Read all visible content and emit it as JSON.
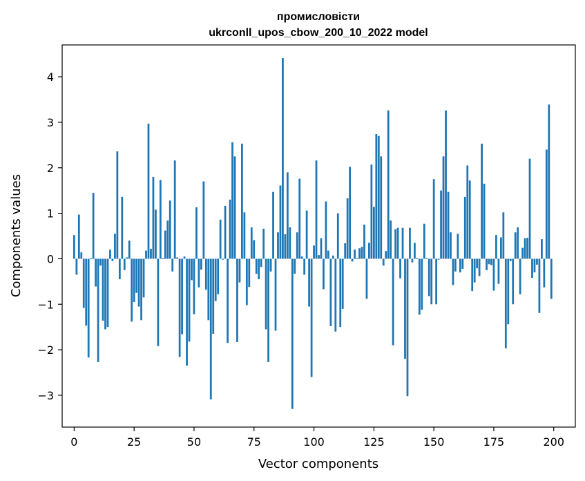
{
  "chart_data": {
    "type": "bar",
    "title": "промисловісти",
    "subtitle": "ukrconll_upos_cbow_200_10_2022 model",
    "xlabel": "Vector components",
    "ylabel": "Components values",
    "xlim": [
      -5,
      209
    ],
    "ylim": [
      -3.7,
      4.7
    ],
    "xticks": [
      0,
      25,
      50,
      75,
      100,
      125,
      150,
      175,
      200
    ],
    "yticks": [
      -3,
      -2,
      -1,
      0,
      1,
      2,
      3,
      4
    ],
    "grid": false,
    "bar_color": "#1f77b4",
    "x": [
      0,
      1,
      2,
      3,
      4,
      5,
      6,
      7,
      8,
      9,
      10,
      11,
      12,
      13,
      14,
      15,
      16,
      17,
      18,
      19,
      20,
      21,
      22,
      23,
      24,
      25,
      26,
      27,
      28,
      29,
      30,
      31,
      32,
      33,
      34,
      35,
      36,
      37,
      38,
      39,
      40,
      41,
      42,
      43,
      44,
      45,
      46,
      47,
      48,
      49,
      50,
      51,
      52,
      53,
      54,
      55,
      56,
      57,
      58,
      59,
      60,
      61,
      62,
      63,
      64,
      65,
      66,
      67,
      68,
      69,
      70,
      71,
      72,
      73,
      74,
      75,
      76,
      77,
      78,
      79,
      80,
      81,
      82,
      83,
      84,
      85,
      86,
      87,
      88,
      89,
      90,
      91,
      92,
      93,
      94,
      95,
      96,
      97,
      98,
      99,
      100,
      101,
      102,
      103,
      104,
      105,
      106,
      107,
      108,
      109,
      110,
      111,
      112,
      113,
      114,
      115,
      116,
      117,
      118,
      119,
      120,
      121,
      122,
      123,
      124,
      125,
      126,
      127,
      128,
      129,
      130,
      131,
      132,
      133,
      134,
      135,
      136,
      137,
      138,
      139,
      140,
      141,
      142,
      143,
      144,
      145,
      146,
      147,
      148,
      149,
      150,
      151,
      152,
      153,
      154,
      155,
      156,
      157,
      158,
      159,
      160,
      161,
      162,
      163,
      164,
      165,
      166,
      167,
      168,
      169,
      170,
      171,
      172,
      173,
      174,
      175,
      176,
      177,
      178,
      179,
      180,
      181,
      182,
      183,
      184,
      185,
      186,
      187,
      188,
      189,
      190,
      191,
      192,
      193,
      194,
      195,
      196,
      197,
      198,
      199
    ],
    "values": [
      0.52,
      -0.35,
      0.97,
      0.14,
      -1.08,
      -1.47,
      -2.17,
      0.02,
      1.45,
      -0.61,
      -2.27,
      -0.15,
      -1.36,
      -1.55,
      -1.5,
      0.2,
      -0.05,
      0.55,
      2.36,
      -0.45,
      1.36,
      -0.25,
      0.03,
      0.4,
      -1.38,
      -0.95,
      -0.75,
      -1.05,
      -1.35,
      -0.85,
      0.18,
      2.97,
      0.22,
      1.8,
      1.08,
      -1.92,
      1.73,
      0.02,
      0.62,
      0.84,
      1.28,
      -0.28,
      2.16,
      0.03,
      -2.16,
      -1.66,
      0.05,
      -2.35,
      -1.82,
      -0.47,
      -1.22,
      1.13,
      -0.63,
      -0.24,
      1.7,
      -0.68,
      -1.35,
      -3.09,
      -1.65,
      -0.93,
      -0.78,
      0.86,
      -0.02,
      1.16,
      -1.85,
      1.3,
      2.56,
      2.25,
      -1.83,
      -0.52,
      2.53,
      1.02,
      -1.02,
      -0.62,
      0.69,
      0.41,
      -0.33,
      -0.45,
      -0.18,
      0.66,
      -1.55,
      -2.27,
      -0.28,
      1.47,
      -1.58,
      0.58,
      1.61,
      4.41,
      0.54,
      1.9,
      0.69,
      -3.3,
      -0.33,
      0.58,
      1.76,
      0.05,
      -0.35,
      1.06,
      -1.05,
      -2.6,
      0.29,
      2.16,
      0.08,
      0.45,
      -0.67,
      1.26,
      0.18,
      -1.48,
      0.07,
      -1.6,
      1.0,
      -1.5,
      -1.1,
      0.34,
      1.33,
      2.02,
      -0.06,
      0.2,
      0.02,
      0.23,
      0.26,
      0.75,
      -0.88,
      0.35,
      2.07,
      1.14,
      2.74,
      2.7,
      2.25,
      -0.15,
      0.17,
      3.26,
      0.84,
      -1.9,
      0.65,
      0.68,
      -0.43,
      0.68,
      -2.2,
      -3.02,
      0.68,
      -0.08,
      0.35,
      0.02,
      -1.23,
      -1.12,
      0.77,
      0.02,
      -0.82,
      -1.0,
      1.75,
      -1.0,
      -0.02,
      1.5,
      2.25,
      3.26,
      1.47,
      0.58,
      -0.58,
      -0.28,
      0.55,
      -0.3,
      -0.22,
      1.36,
      2.05,
      1.72,
      -0.71,
      -0.52,
      -0.21,
      -0.38,
      2.53,
      1.65,
      -0.25,
      -0.12,
      -0.14,
      -0.7,
      0.52,
      -0.55,
      0.47,
      1.02,
      -1.97,
      -1.44,
      -0.05,
      -1.0,
      0.58,
      0.69,
      -0.78,
      0.24,
      0.45,
      0.46,
      2.2,
      -0.42,
      -0.3,
      -0.13,
      -1.19,
      0.43,
      -0.63,
      2.4,
      3.39,
      -0.88
    ]
  }
}
